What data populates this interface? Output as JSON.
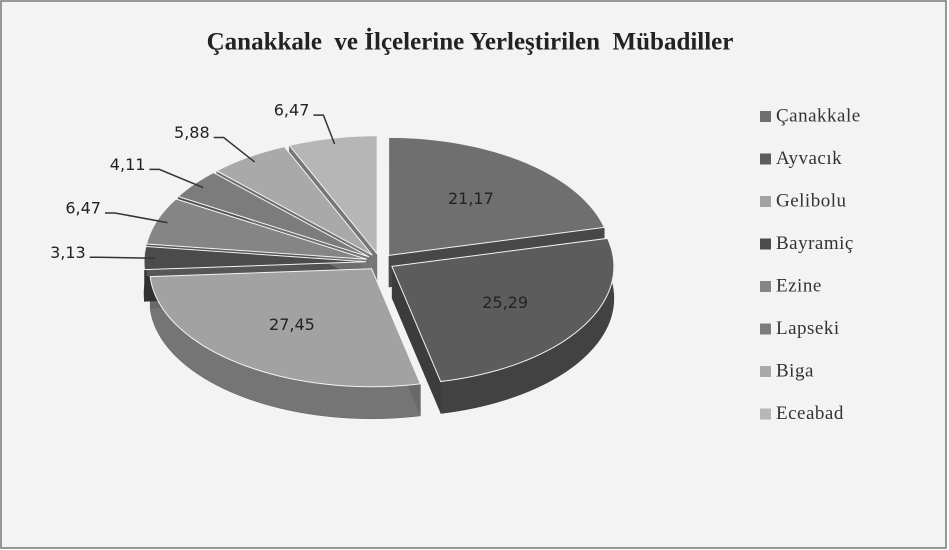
{
  "chart_data": {
    "type": "pie",
    "title": "Çanakkale  ve İlçelerine Yerleştirilen  Mübadiller",
    "categories": [
      "Çanakkale",
      "Ayvacık",
      "Gelibolu",
      "Bayramiç",
      "Ezine",
      "Lapseki",
      "Biga",
      "Eceabad"
    ],
    "values": [
      21.17,
      25.29,
      27.45,
      3.13,
      6.47,
      4.11,
      5.88,
      6.47
    ],
    "value_labels": [
      "21,17",
      "25,29",
      "27,45",
      "3,13",
      "6,47",
      "4,11",
      "5,88",
      "6,47"
    ],
    "colors": [
      "#6f6f6f",
      "#5c5c5c",
      "#a2a2a2",
      "#4b4b4b",
      "#858585",
      "#7c7c7c",
      "#a9a9a9",
      "#b6b6b6"
    ],
    "legend": "right"
  }
}
